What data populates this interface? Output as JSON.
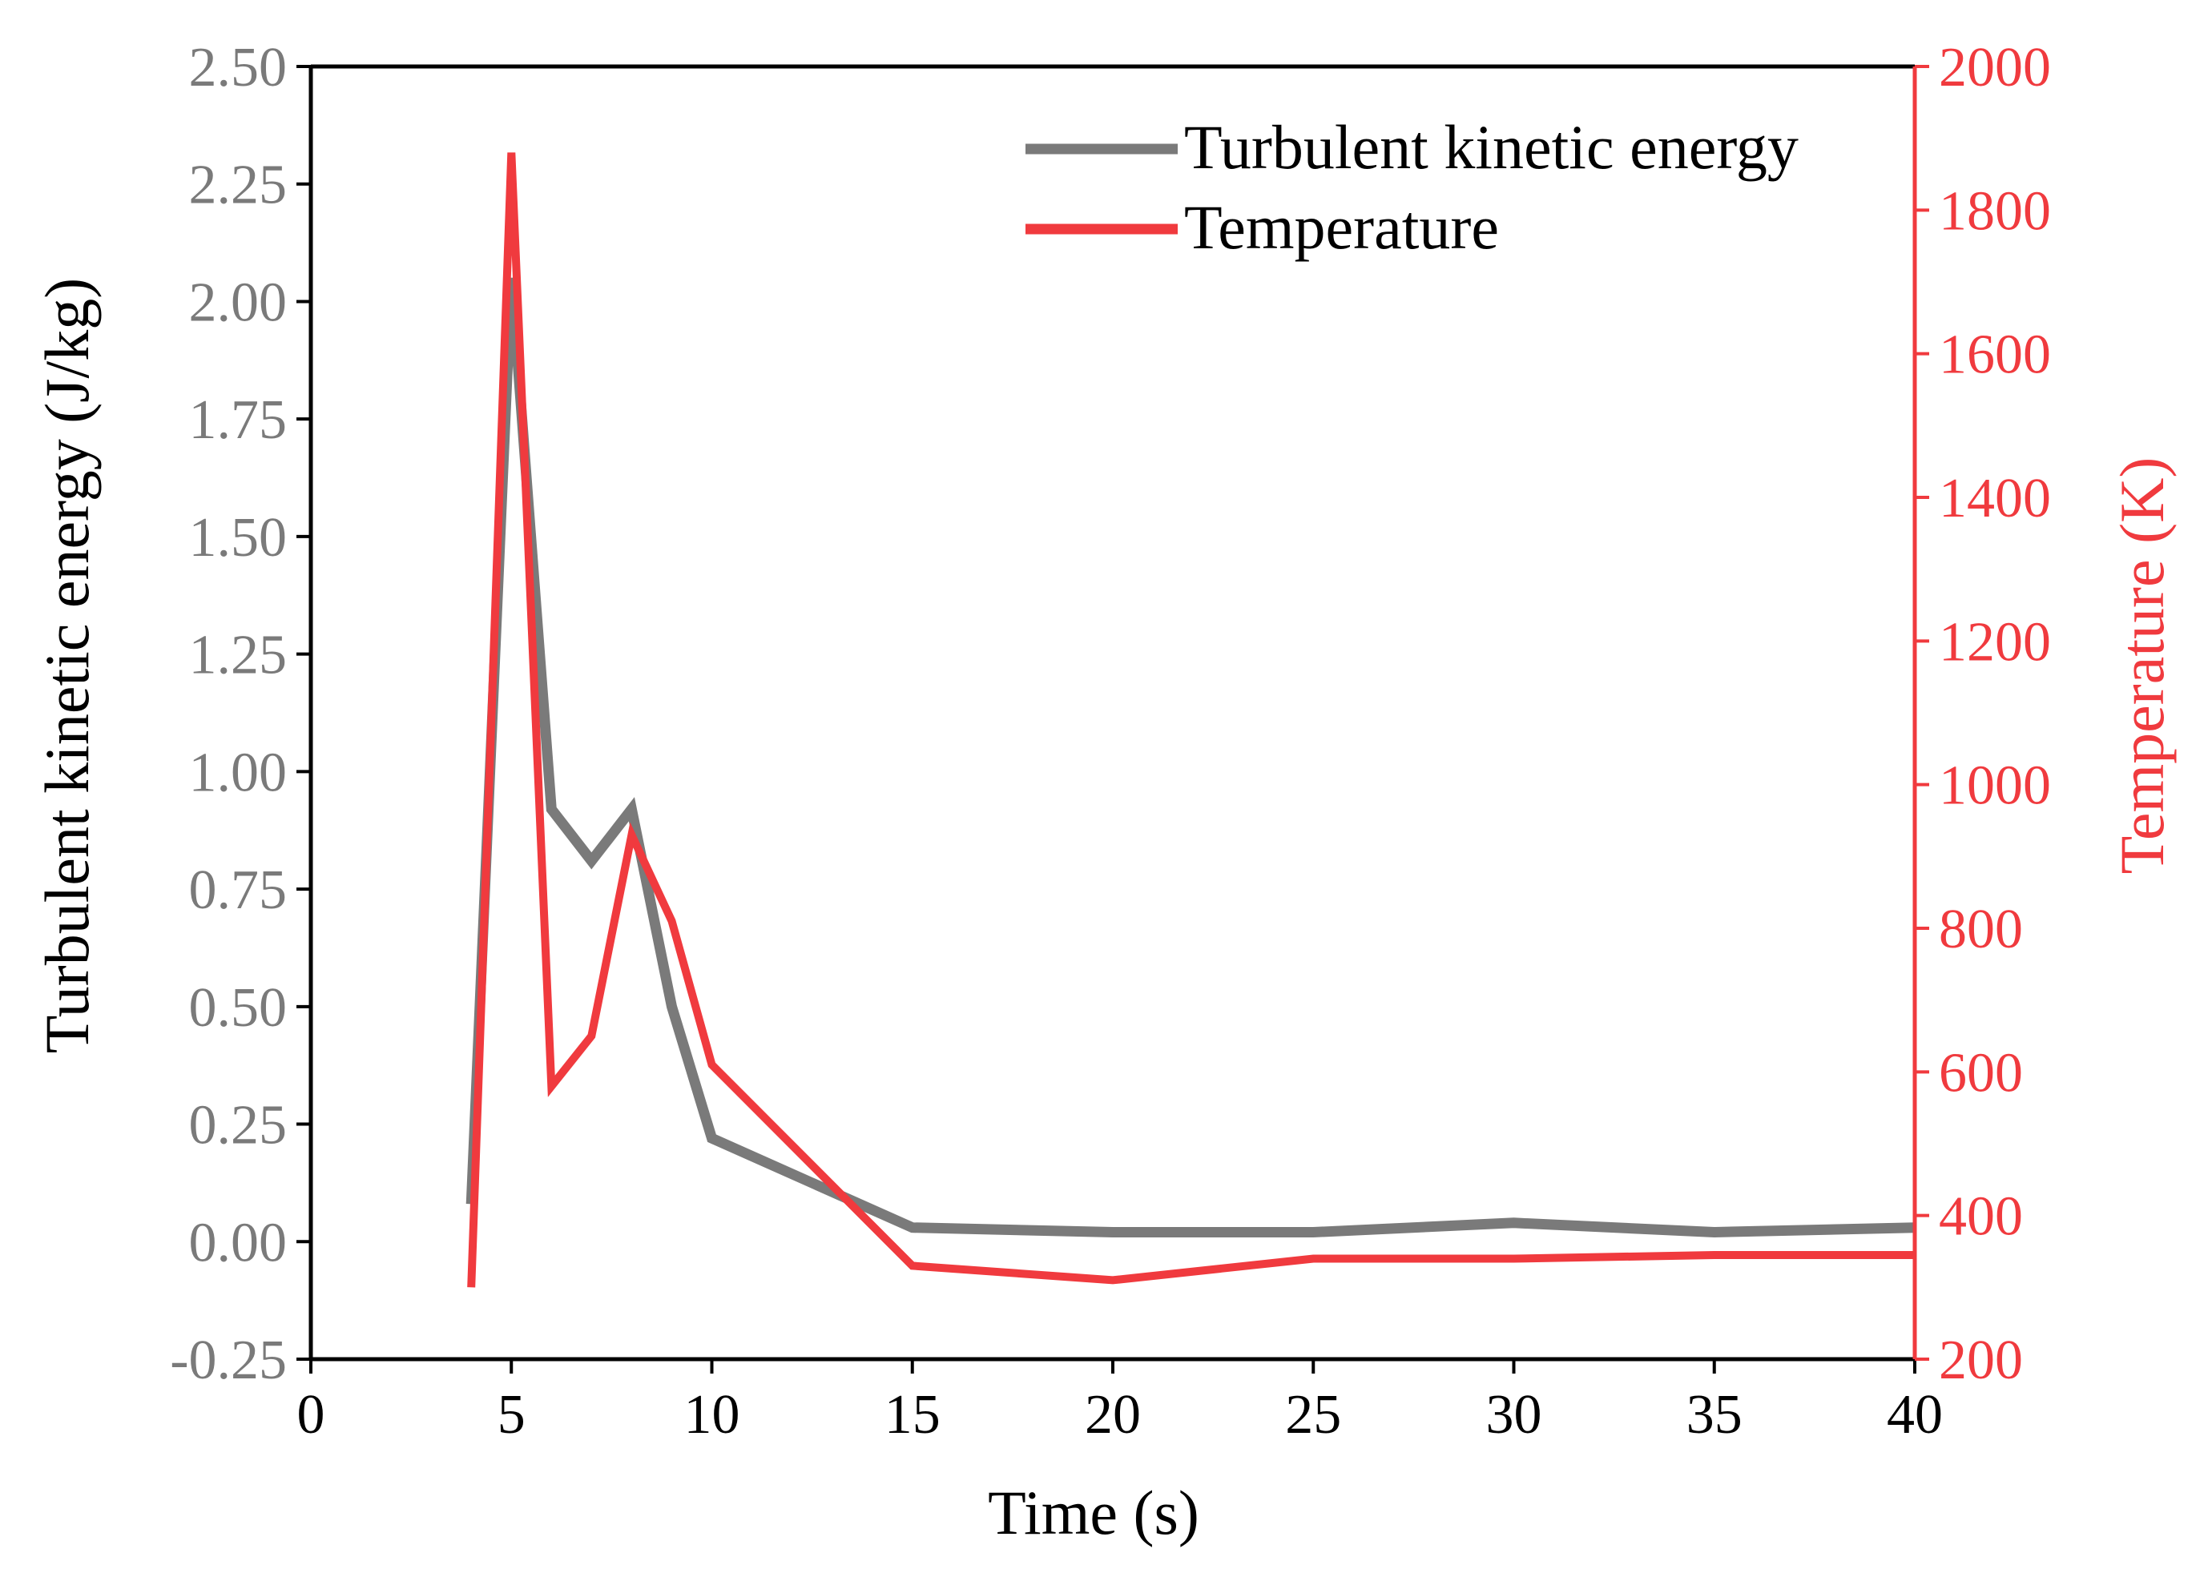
{
  "chart_data": {
    "type": "line",
    "xlabel": "Time (s)",
    "ylabel_left": "Turbulent kinetic energy (J/kg)",
    "ylabel_right": "Temperature (K)",
    "xlim": [
      0,
      40
    ],
    "ylim_left": [
      -0.25,
      2.5
    ],
    "ylim_right": [
      200,
      2000
    ],
    "x_ticks": [
      "0",
      "5",
      "10",
      "15",
      "20",
      "25",
      "30",
      "35",
      "40"
    ],
    "y_left_ticks": [
      "-0.25",
      "0.00",
      "0.25",
      "0.50",
      "0.75",
      "1.00",
      "1.25",
      "1.50",
      "1.75",
      "2.00",
      "2.25",
      "2.50"
    ],
    "y_right_ticks": [
      "200",
      "400",
      "600",
      "800",
      "1000",
      "1200",
      "1400",
      "1600",
      "1800",
      "2000"
    ],
    "grid": false,
    "legend_position": "top-right",
    "colors": {
      "tke": "#7a7a7a",
      "temperature": "#f03a3e",
      "axis": "#000000"
    },
    "series": [
      {
        "name": "Turbulent kinetic energy",
        "axis": "left",
        "x": [
          4,
          5,
          6,
          7,
          8,
          9,
          10,
          15,
          20,
          25,
          30,
          35,
          40
        ],
        "y": [
          0.08,
          2.05,
          0.92,
          0.81,
          0.92,
          0.5,
          0.22,
          0.03,
          0.02,
          0.02,
          0.04,
          0.02,
          0.03
        ]
      },
      {
        "name": "Temperature",
        "axis": "right",
        "x": [
          4,
          5,
          6,
          7,
          8,
          9,
          10,
          15,
          20,
          25,
          30,
          35,
          40
        ],
        "y": [
          300,
          1880,
          580,
          650,
          930,
          810,
          610,
          330,
          310,
          340,
          340,
          345,
          345
        ]
      }
    ]
  }
}
